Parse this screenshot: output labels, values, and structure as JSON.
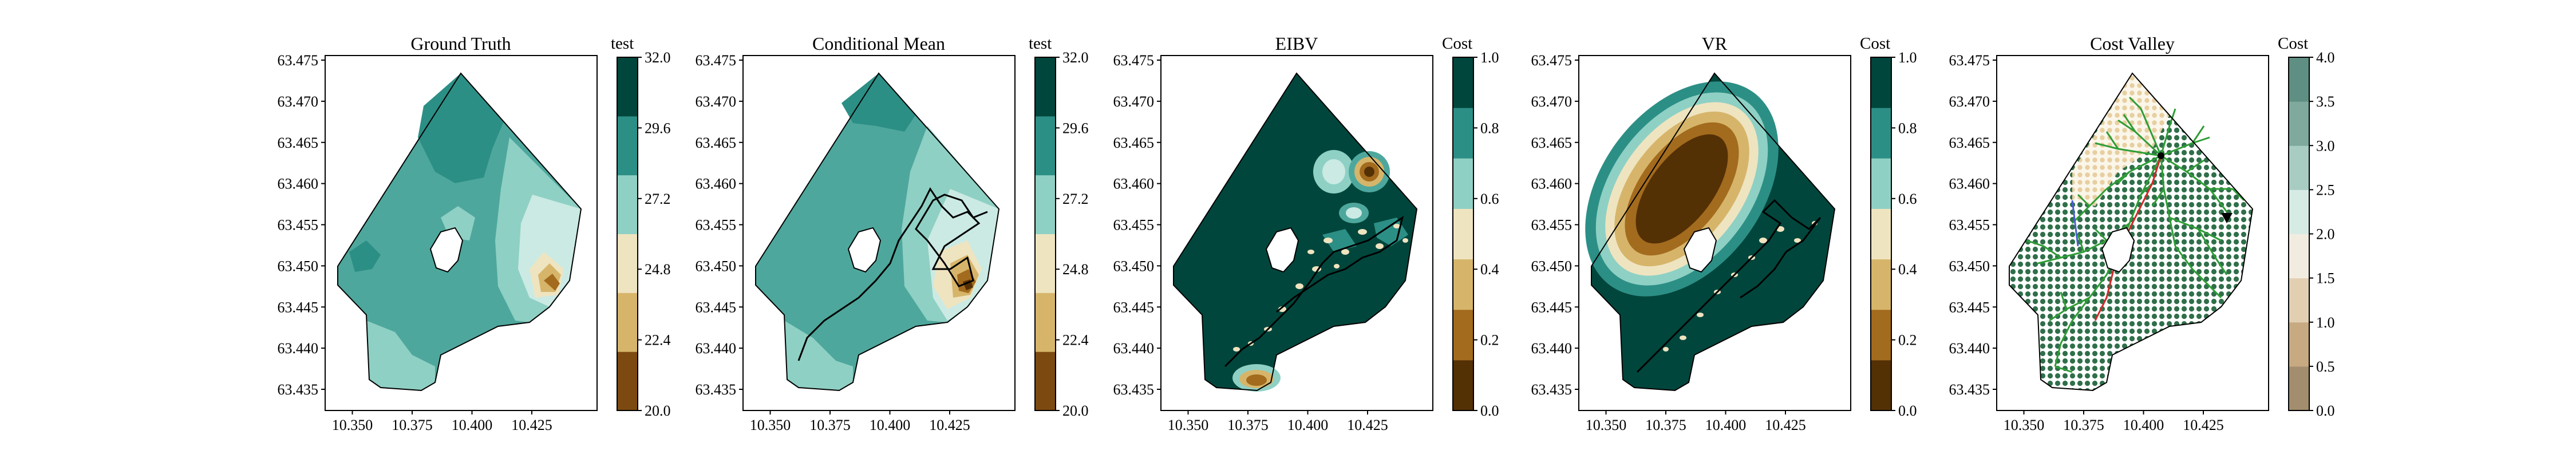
{
  "chart_data": [
    {
      "type": "heatmap",
      "title": "Ground Truth",
      "x_ticks": [
        "10.350",
        "10.375",
        "10.400",
        "10.425"
      ],
      "y_ticks": [
        "63.475",
        "63.470",
        "63.465",
        "63.460",
        "63.455",
        "63.450",
        "63.445",
        "63.440",
        "63.435"
      ],
      "colorbar": {
        "label": "test",
        "ticks": [
          "32.0",
          "29.6",
          "27.2",
          "24.8",
          "22.4",
          "20.0"
        ],
        "range": [
          20.0,
          32.0
        ],
        "colormap": "BrBG"
      },
      "overlay": "none"
    },
    {
      "type": "heatmap",
      "title": "Conditional Mean",
      "x_ticks": [
        "10.350",
        "10.375",
        "10.400",
        "10.425"
      ],
      "y_ticks": [
        "63.475",
        "63.470",
        "63.465",
        "63.460",
        "63.455",
        "63.450",
        "63.445",
        "63.440",
        "63.435"
      ],
      "colorbar": {
        "label": "test",
        "ticks": [
          "32.0",
          "29.6",
          "27.2",
          "24.8",
          "22.4",
          "20.0"
        ],
        "range": [
          20.0,
          32.0
        ],
        "colormap": "BrBG"
      },
      "overlay": "black path"
    },
    {
      "type": "heatmap",
      "title": "EIBV",
      "x_ticks": [
        "10.350",
        "10.375",
        "10.400",
        "10.425"
      ],
      "y_ticks": [
        "63.475",
        "63.470",
        "63.465",
        "63.460",
        "63.455",
        "63.450",
        "63.445",
        "63.440",
        "63.435"
      ],
      "colorbar": {
        "label": "Cost",
        "ticks": [
          "1.0",
          "0.8",
          "0.6",
          "0.4",
          "0.2",
          "0.0"
        ],
        "range": [
          0.0,
          1.0
        ],
        "colormap": "BrBG"
      },
      "overlay": "black path"
    },
    {
      "type": "heatmap",
      "title": "VR",
      "x_ticks": [
        "10.350",
        "10.375",
        "10.400",
        "10.425"
      ],
      "y_ticks": [
        "63.475",
        "63.470",
        "63.465",
        "63.460",
        "63.455",
        "63.450",
        "63.445",
        "63.440",
        "63.435"
      ],
      "colorbar": {
        "label": "Cost",
        "ticks": [
          "1.0",
          "0.8",
          "0.6",
          "0.4",
          "0.2",
          "0.0"
        ],
        "range": [
          0.0,
          1.0
        ],
        "colormap": "BrBG"
      },
      "overlay": "black path"
    },
    {
      "type": "heatmap",
      "title": "Cost Valley",
      "x_ticks": [
        "10.350",
        "10.375",
        "10.400",
        "10.425"
      ],
      "y_ticks": [
        "63.475",
        "63.470",
        "63.465",
        "63.460",
        "63.455",
        "63.450",
        "63.445",
        "63.440",
        "63.435"
      ],
      "colorbar": {
        "label": "Cost",
        "ticks": [
          "4.0",
          "3.5",
          "3.0",
          "2.5",
          "2.0",
          "1.5",
          "1.0",
          "0.5",
          "0.0"
        ],
        "range": [
          0.0,
          4.0
        ],
        "colormap": "BrBG"
      },
      "overlay": "tree + grid points"
    }
  ],
  "colors": {
    "dark_teal": "#01463c",
    "teal": "#2c8f86",
    "mid_teal": "#4ea79c",
    "light_teal": "#8fd0c4",
    "pale_teal": "#cbeae4",
    "pale_tan": "#efe4c0",
    "tan": "#d6b56a",
    "light_brown": "#a36b1e",
    "brown": "#7c4a10",
    "dark_brown": "#543005",
    "tree_green": "#2e9d35",
    "red_path": "#d62728",
    "blue_path": "#4a5bd6"
  }
}
